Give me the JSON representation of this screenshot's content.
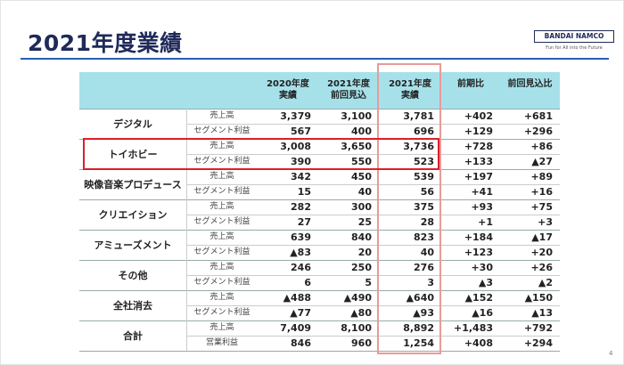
{
  "header": {
    "title": "2021年度業績",
    "brand": "BANDAI NAMCO",
    "tagline": "Fun for All into the Future",
    "page_number": "4"
  },
  "table": {
    "columns": [
      "2020年度\n実績",
      "2021年度\n前回見込",
      "2021年度\n実績",
      "前期比",
      "前回見込比"
    ],
    "rows": [
      {
        "segment": "デジタル",
        "items": [
          {
            "label": "売上高",
            "values": [
              "3,379",
              "3,100",
              "3,781",
              "+402",
              "+681"
            ]
          },
          {
            "label": "セグメント利益",
            "values": [
              "567",
              "400",
              "696",
              "+129",
              "+296"
            ]
          }
        ]
      },
      {
        "segment": "トイホビー",
        "items": [
          {
            "label": "売上高",
            "values": [
              "3,008",
              "3,650",
              "3,736",
              "+728",
              "+86"
            ]
          },
          {
            "label": "セグメント利益",
            "values": [
              "390",
              "550",
              "523",
              "+133",
              "▲27"
            ]
          }
        ]
      },
      {
        "segment": "映像音楽プロデュース",
        "items": [
          {
            "label": "売上高",
            "values": [
              "342",
              "450",
              "539",
              "+197",
              "+89"
            ]
          },
          {
            "label": "セグメント利益",
            "values": [
              "15",
              "40",
              "56",
              "+41",
              "+16"
            ]
          }
        ]
      },
      {
        "segment": "クリエイション",
        "items": [
          {
            "label": "売上高",
            "values": [
              "282",
              "300",
              "375",
              "+93",
              "+75"
            ]
          },
          {
            "label": "セグメント利益",
            "values": [
              "27",
              "25",
              "28",
              "+1",
              "+3"
            ]
          }
        ]
      },
      {
        "segment": "アミューズメント",
        "items": [
          {
            "label": "売上高",
            "values": [
              "639",
              "840",
              "823",
              "+184",
              "▲17"
            ]
          },
          {
            "label": "セグメント利益",
            "values": [
              "▲83",
              "20",
              "40",
              "+123",
              "+20"
            ]
          }
        ]
      },
      {
        "segment": "その他",
        "items": [
          {
            "label": "売上高",
            "values": [
              "246",
              "250",
              "276",
              "+30",
              "+26"
            ]
          },
          {
            "label": "セグメント利益",
            "values": [
              "6",
              "5",
              "3",
              "▲3",
              "▲2"
            ]
          }
        ]
      },
      {
        "segment": "全社消去",
        "items": [
          {
            "label": "売上高",
            "values": [
              "▲488",
              "▲490",
              "▲640",
              "▲152",
              "▲150"
            ]
          },
          {
            "label": "セグメント利益",
            "values": [
              "▲77",
              "▲80",
              "▲93",
              "▲16",
              "▲13"
            ]
          }
        ]
      },
      {
        "segment": "合計",
        "items": [
          {
            "label": "売上高",
            "values": [
              "7,409",
              "8,100",
              "8,892",
              "+1,483",
              "+792"
            ]
          },
          {
            "label": "営業利益",
            "values": [
              "846",
              "960",
              "1,254",
              "+408",
              "+294"
            ]
          }
        ]
      }
    ]
  }
}
